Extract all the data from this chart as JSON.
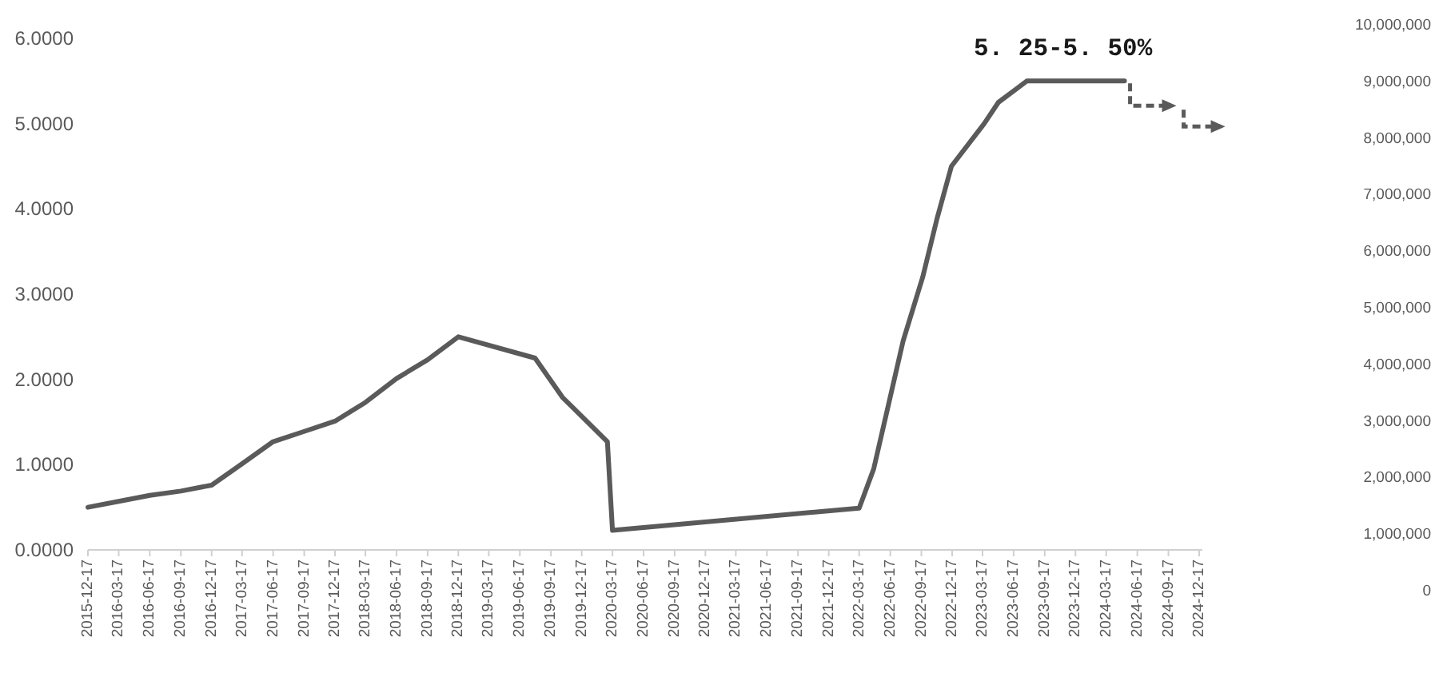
{
  "chart_data": {
    "type": "line",
    "x": [
      "2015-12-17",
      "2016-03-17",
      "2016-06-17",
      "2016-09-17",
      "2016-12-17",
      "2017-03-17",
      "2017-06-17",
      "2017-09-17",
      "2017-12-17",
      "2018-03-17",
      "2018-06-17",
      "2018-09-17",
      "2018-12-17",
      "2019-08-01",
      "2019-10-21",
      "2020-03-02",
      "2020-03-17",
      "2022-03-17",
      "2022-04-29",
      "2022-07-25",
      "2022-09-21",
      "2022-11-02",
      "2022-12-15",
      "2023-03-22",
      "2023-05-03",
      "2023-07-26",
      "2024-05-10"
    ],
    "series": [
      {
        "color": "#5a5a5a",
        "values": [
          0.5,
          0.57,
          0.64,
          0.69,
          0.76,
          1.01,
          1.27,
          1.39,
          1.51,
          1.73,
          2.01,
          2.23,
          2.5,
          2.25,
          1.79,
          1.27,
          0.23,
          0.49,
          0.95,
          2.45,
          3.2,
          3.88,
          4.5,
          5.0,
          5.25,
          5.5,
          5.5
        ]
      }
    ],
    "xlim": [
      "2015-12-17",
      "2024-12-17"
    ],
    "xticks": [
      "2015-12-17",
      "2016-03-17",
      "2016-06-17",
      "2016-09-17",
      "2016-12-17",
      "2017-03-17",
      "2017-06-17",
      "2017-09-17",
      "2017-12-17",
      "2018-03-17",
      "2018-06-17",
      "2018-09-17",
      "2018-12-17",
      "2019-03-17",
      "2019-06-17",
      "2019-09-17",
      "2019-12-17",
      "2020-03-17",
      "2020-06-17",
      "2020-09-17",
      "2020-12-17",
      "2021-03-17",
      "2021-06-17",
      "2021-09-17",
      "2021-12-17",
      "2022-03-17",
      "2022-06-17",
      "2022-09-17",
      "2022-12-17",
      "2023-03-17",
      "2023-06-17",
      "2023-09-17",
      "2023-12-17",
      "2024-03-17",
      "2024-06-17",
      "2024-09-17",
      "2024-12-17"
    ],
    "ylim": [
      0,
      6
    ],
    "yticks": [
      {
        "value": 0,
        "label": "0.0000"
      },
      {
        "value": 1,
        "label": "1.0000"
      },
      {
        "value": 2,
        "label": "2.0000"
      },
      {
        "value": 3,
        "label": "3.0000"
      },
      {
        "value": 4,
        "label": "4.0000"
      },
      {
        "value": 5,
        "label": "5.0000"
      },
      {
        "value": 6,
        "label": "6.0000"
      }
    ],
    "y2lim": [
      0,
      10000000
    ],
    "y2ticks": [
      0,
      {
        "value": 1000000,
        "label": "1,000,000"
      },
      {
        "value": 2000000,
        "label": "2,000,000"
      },
      {
        "value": 3000000,
        "label": "3,000,000"
      },
      {
        "value": 4000000,
        "label": "4,000,000"
      },
      {
        "value": 5000000,
        "label": "5,000,000"
      },
      {
        "value": 6000000,
        "label": "6,000,000"
      },
      {
        "value": 7000000,
        "label": "7,000,000"
      },
      {
        "value": 8000000,
        "label": "8,000,000"
      },
      {
        "value": 9000000,
        "label": "9,000,000"
      },
      {
        "value": 10000000,
        "label": "10,000,000"
      }
    ],
    "annotations": [
      {
        "text": "5. 25-5. 50%",
        "x": "2023-11-10",
        "y": 5.5
      }
    ]
  }
}
